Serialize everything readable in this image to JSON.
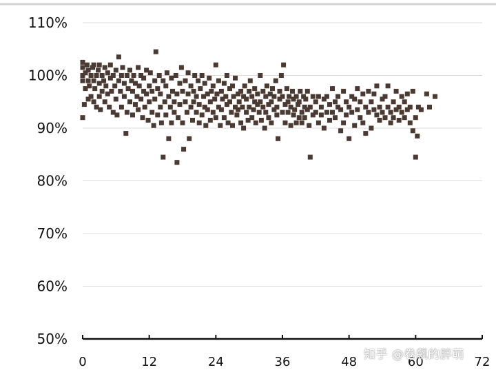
{
  "colors": {
    "marker": "#4a3a32",
    "axis": "#111111",
    "grid": "#dcdcdc",
    "frame_top": "#d3d3d3"
  },
  "watermark": "知乎 @卷飙的胖萌",
  "chart_data": {
    "type": "scatter",
    "title": "",
    "xlabel": "",
    "ylabel": "",
    "xlim": [
      0,
      72
    ],
    "ylim": [
      50,
      110
    ],
    "x_ticks": [
      0,
      12,
      24,
      36,
      48,
      60,
      72
    ],
    "y_ticks": [
      50,
      60,
      70,
      80,
      90,
      100,
      110
    ],
    "y_tick_labels": [
      "50%",
      "60%",
      "70%",
      "80%",
      "90%",
      "100%",
      "110%"
    ],
    "grid": "horizontal",
    "legend": "none",
    "points": [
      [
        0,
        100
      ],
      [
        0,
        101.5
      ],
      [
        0,
        102.5
      ],
      [
        0,
        99
      ],
      [
        0,
        92
      ],
      [
        0.3,
        94.5
      ],
      [
        0.5,
        100.5
      ],
      [
        0.5,
        97.5
      ],
      [
        0.8,
        102
      ],
      [
        1,
        99
      ],
      [
        1,
        95.5
      ],
      [
        1,
        101
      ],
      [
        1.2,
        98
      ],
      [
        1.5,
        100
      ],
      [
        1.5,
        96
      ],
      [
        1.8,
        101.5
      ],
      [
        2,
        99
      ],
      [
        2,
        102
      ],
      [
        2,
        95
      ],
      [
        2.2,
        97.5
      ],
      [
        2.5,
        100
      ],
      [
        2.5,
        94
      ],
      [
        2.8,
        101
      ],
      [
        3,
        98.5
      ],
      [
        3,
        96
      ],
      [
        3,
        102
      ],
      [
        3.2,
        93.5
      ],
      [
        3.5,
        100
      ],
      [
        3.5,
        97
      ],
      [
        3.8,
        99
      ],
      [
        4,
        101.5
      ],
      [
        4,
        95
      ],
      [
        4.2,
        98
      ],
      [
        4.5,
        100.5
      ],
      [
        4.5,
        96.5
      ],
      [
        4.8,
        94
      ],
      [
        5,
        99.5
      ],
      [
        5,
        102
      ],
      [
        5.2,
        97
      ],
      [
        5.5,
        93
      ],
      [
        5.5,
        100
      ],
      [
        5.8,
        98
      ],
      [
        6,
        101
      ],
      [
        6,
        95.5
      ],
      [
        6.2,
        92.5
      ],
      [
        6.5,
        99
      ],
      [
        6.5,
        103.5
      ],
      [
        6.8,
        97
      ],
      [
        7,
        100
      ],
      [
        7,
        94
      ],
      [
        7.2,
        101.5
      ],
      [
        7.5,
        98.5
      ],
      [
        7.5,
        96
      ],
      [
        7.8,
        89
      ],
      [
        8,
        100
      ],
      [
        8,
        93
      ],
      [
        8.2,
        97.5
      ],
      [
        8.5,
        101
      ],
      [
        8.5,
        95
      ],
      [
        8.8,
        99
      ],
      [
        9,
        92.5
      ],
      [
        9,
        97
      ],
      [
        9.2,
        100
      ],
      [
        9.5,
        94.5
      ],
      [
        9.5,
        98.5
      ],
      [
        9.8,
        96
      ],
      [
        10,
        101.5
      ],
      [
        10,
        93.5
      ],
      [
        10.2,
        98
      ],
      [
        10.5,
        95.5
      ],
      [
        10.5,
        100
      ],
      [
        10.8,
        92
      ],
      [
        11,
        97
      ],
      [
        11,
        99.5
      ],
      [
        11.2,
        94
      ],
      [
        11.5,
        96.5
      ],
      [
        11.5,
        101
      ],
      [
        11.8,
        91.5
      ],
      [
        12,
        98
      ],
      [
        12,
        95
      ],
      [
        12.2,
        100.5
      ],
      [
        12.5,
        93
      ],
      [
        12.5,
        97
      ],
      [
        12.8,
        90.5
      ],
      [
        13,
        99
      ],
      [
        13,
        95.5
      ],
      [
        13.2,
        104.5
      ],
      [
        13.5,
        92.5
      ],
      [
        13.5,
        97.5
      ],
      [
        13.8,
        100
      ],
      [
        14,
        94
      ],
      [
        14,
        96.5
      ],
      [
        14.2,
        91
      ],
      [
        14.5,
        99
      ],
      [
        14.5,
        84.5
      ],
      [
        14.8,
        95
      ],
      [
        15,
        98
      ],
      [
        15,
        92.5
      ],
      [
        15.2,
        100.5
      ],
      [
        15.5,
        96
      ],
      [
        15.5,
        88
      ],
      [
        15.8,
        94
      ],
      [
        16,
        99.5
      ],
      [
        16,
        91
      ],
      [
        16.2,
        97
      ],
      [
        16.5,
        95
      ],
      [
        16.5,
        93
      ],
      [
        16.8,
        100
      ],
      [
        17,
        83.5
      ],
      [
        17,
        96.5
      ],
      [
        17.2,
        92
      ],
      [
        17.5,
        98.5
      ],
      [
        17.5,
        94.5
      ],
      [
        17.8,
        101.5
      ],
      [
        18,
        91
      ],
      [
        18,
        97
      ],
      [
        18.2,
        86
      ],
      [
        18.5,
        95
      ],
      [
        18.5,
        99
      ],
      [
        18.8,
        93
      ],
      [
        19,
        100.5
      ],
      [
        19,
        96.5
      ],
      [
        19.2,
        88
      ],
      [
        19.5,
        94
      ],
      [
        19.5,
        98
      ],
      [
        19.8,
        91.5
      ],
      [
        20,
        97
      ],
      [
        20,
        95
      ],
      [
        20.2,
        100
      ],
      [
        20.5,
        93
      ],
      [
        20.5,
        96
      ],
      [
        20.8,
        99
      ],
      [
        21,
        91
      ],
      [
        21,
        94.5
      ],
      [
        21.2,
        97.5
      ],
      [
        21.5,
        100
      ],
      [
        21.5,
        92.5
      ],
      [
        21.8,
        96
      ],
      [
        22,
        94
      ],
      [
        22,
        98.5
      ],
      [
        22.2,
        90.5
      ],
      [
        22.5,
        96.5
      ],
      [
        22.5,
        93.5
      ],
      [
        22.8,
        99.5
      ],
      [
        23,
        95
      ],
      [
        23,
        91.5
      ],
      [
        23.2,
        97
      ],
      [
        23.5,
        93
      ],
      [
        23.5,
        98
      ],
      [
        23.8,
        95.5
      ],
      [
        24,
        92
      ],
      [
        24,
        102
      ],
      [
        24.2,
        96.5
      ],
      [
        24.5,
        94
      ],
      [
        24.5,
        99
      ],
      [
        24.8,
        90.5
      ],
      [
        25,
        97
      ],
      [
        25,
        93.5
      ],
      [
        25.2,
        95.5
      ],
      [
        25.5,
        98.5
      ],
      [
        25.5,
        92
      ],
      [
        25.8,
        96
      ],
      [
        26,
        94.5
      ],
      [
        26,
        100
      ],
      [
        26.2,
        91
      ],
      [
        26.5,
        97.5
      ],
      [
        26.5,
        95
      ],
      [
        26.8,
        93
      ],
      [
        27,
        98
      ],
      [
        27,
        90.5
      ],
      [
        27.2,
        96
      ],
      [
        27.5,
        94
      ],
      [
        27.5,
        99.5
      ],
      [
        27.8,
        92.5
      ],
      [
        28,
        96.5
      ],
      [
        28,
        93.5
      ],
      [
        28.2,
        95
      ],
      [
        28.5,
        91
      ],
      [
        28.5,
        97
      ],
      [
        28.8,
        94
      ],
      [
        29,
        90
      ],
      [
        29,
        96
      ],
      [
        29.2,
        98
      ],
      [
        29.5,
        93
      ],
      [
        29.5,
        95.5
      ],
      [
        29.8,
        91.5
      ],
      [
        30,
        97
      ],
      [
        30,
        94
      ],
      [
        30.2,
        99
      ],
      [
        30.5,
        92
      ],
      [
        30.5,
        96
      ],
      [
        30.8,
        93.5
      ],
      [
        31,
        95
      ],
      [
        31,
        97.5
      ],
      [
        31.2,
        91
      ],
      [
        31.5,
        94.5
      ],
      [
        31.5,
        96.5
      ],
      [
        31.8,
        93
      ],
      [
        32,
        100
      ],
      [
        32,
        95
      ],
      [
        32.2,
        91.5
      ],
      [
        32.5,
        97
      ],
      [
        32.5,
        94
      ],
      [
        32.8,
        90
      ],
      [
        33,
        96
      ],
      [
        33,
        93
      ],
      [
        33.2,
        98
      ],
      [
        33.5,
        94.5
      ],
      [
        33.5,
        92
      ],
      [
        33.8,
        96.5
      ],
      [
        34,
        95
      ],
      [
        34,
        91
      ],
      [
        34.2,
        97.5
      ],
      [
        34.5,
        93.5
      ],
      [
        34.5,
        96
      ],
      [
        34.8,
        99
      ],
      [
        35,
        94
      ],
      [
        35,
        92.5
      ],
      [
        35.2,
        88
      ],
      [
        35.5,
        95.5
      ],
      [
        35.5,
        97
      ],
      [
        35.8,
        100
      ],
      [
        36,
        93
      ],
      [
        36,
        96
      ],
      [
        36.2,
        102
      ],
      [
        36.5,
        91
      ],
      [
        36.5,
        94.5
      ],
      [
        36.8,
        97.5
      ],
      [
        37,
        95
      ],
      [
        37,
        93
      ],
      [
        37.2,
        96
      ],
      [
        37.5,
        90.5
      ],
      [
        37.5,
        94
      ],
      [
        37.8,
        97
      ],
      [
        38,
        92.5
      ],
      [
        38,
        95.5
      ],
      [
        38.2,
        93.5
      ],
      [
        38.5,
        96
      ],
      [
        38.5,
        91
      ],
      [
        38.8,
        94.5
      ],
      [
        39,
        92
      ],
      [
        39,
        95
      ],
      [
        39.2,
        97
      ],
      [
        39.5,
        93
      ],
      [
        39.5,
        91
      ],
      [
        39.8,
        96
      ],
      [
        40,
        94
      ],
      [
        40,
        92
      ],
      [
        40.2,
        95.5
      ],
      [
        40.5,
        97
      ],
      [
        40.5,
        93.5
      ],
      [
        40.8,
        90.5
      ],
      [
        41,
        84.5
      ],
      [
        41,
        94
      ],
      [
        41.5,
        96
      ],
      [
        41.5,
        92.5
      ],
      [
        42,
        95
      ],
      [
        42,
        93
      ],
      [
        42.5,
        91
      ],
      [
        42.5,
        96
      ],
      [
        43,
        94
      ],
      [
        43,
        92.5
      ],
      [
        43.5,
        95.5
      ],
      [
        43.5,
        90
      ],
      [
        44,
        93
      ],
      [
        44,
        96
      ],
      [
        44.5,
        94.5
      ],
      [
        44.5,
        91.5
      ],
      [
        45,
        97.5
      ],
      [
        45,
        93
      ],
      [
        45.5,
        95
      ],
      [
        45.5,
        92
      ],
      [
        46,
        96
      ],
      [
        46,
        94
      ],
      [
        46.5,
        93.5
      ],
      [
        46.5,
        89.5
      ],
      [
        47,
        97
      ],
      [
        47,
        91
      ],
      [
        47.5,
        95
      ],
      [
        47.5,
        92.5
      ],
      [
        48,
        88
      ],
      [
        48,
        94
      ],
      [
        48.5,
        96
      ],
      [
        48.5,
        93
      ],
      [
        49,
        95.5
      ],
      [
        49,
        90.5
      ],
      [
        49.5,
        97.5
      ],
      [
        49.5,
        93.5
      ],
      [
        50,
        92
      ],
      [
        50,
        95
      ],
      [
        50.5,
        96.5
      ],
      [
        50.5,
        91
      ],
      [
        51,
        94
      ],
      [
        51,
        89
      ],
      [
        51.5,
        97
      ],
      [
        51.5,
        93
      ],
      [
        52,
        95
      ],
      [
        52,
        90
      ],
      [
        52.5,
        93.5
      ],
      [
        52.5,
        96.5
      ],
      [
        53,
        98
      ],
      [
        53,
        92.5
      ],
      [
        53.5,
        94
      ],
      [
        53.5,
        91.5
      ],
      [
        54,
        95.5
      ],
      [
        54,
        93
      ],
      [
        54.5,
        92
      ],
      [
        54.5,
        96
      ],
      [
        55,
        94
      ],
      [
        55,
        98
      ],
      [
        55.5,
        93
      ],
      [
        55.5,
        91
      ],
      [
        56,
        95
      ],
      [
        56,
        92
      ],
      [
        56.5,
        93.5
      ],
      [
        56.5,
        97
      ],
      [
        57,
        94
      ],
      [
        57,
        91.5
      ],
      [
        57.5,
        96
      ],
      [
        57.5,
        93
      ],
      [
        58,
        92
      ],
      [
        58,
        95
      ],
      [
        58.5,
        96.5
      ],
      [
        58.5,
        93.5
      ],
      [
        59,
        94
      ],
      [
        59,
        91
      ],
      [
        59.5,
        97
      ],
      [
        59.5,
        89.5
      ],
      [
        60,
        92
      ],
      [
        60,
        84.5
      ],
      [
        60.3,
        88.5
      ],
      [
        60.5,
        94
      ],
      [
        61,
        93.5
      ],
      [
        62,
        96.5
      ],
      [
        62.5,
        94
      ],
      [
        63.5,
        96
      ]
    ]
  }
}
